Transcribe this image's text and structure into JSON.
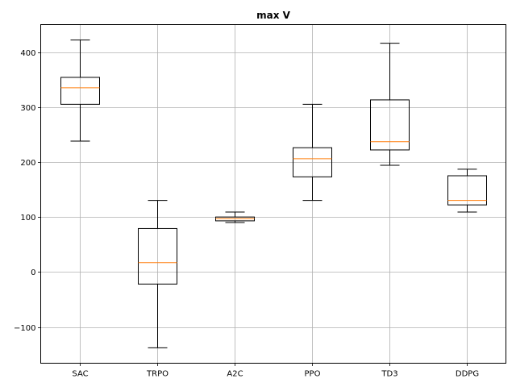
{
  "chart_data": {
    "type": "box",
    "title": "max V",
    "xlabel": "",
    "ylabel": "",
    "categories": [
      "SAC",
      "TRPO",
      "A2C",
      "PPO",
      "TD3",
      "DDPG"
    ],
    "boxes": [
      {
        "label": "SAC",
        "whisker_low": 238,
        "q1": 305,
        "median": 335,
        "q3": 354,
        "whisker_high": 422
      },
      {
        "label": "TRPO",
        "whisker_low": -138,
        "q1": -22,
        "median": 17,
        "q3": 79,
        "whisker_high": 130
      },
      {
        "label": "A2C",
        "whisker_low": 90,
        "q1": 93,
        "median": 97,
        "q3": 100,
        "whisker_high": 109
      },
      {
        "label": "PPO",
        "whisker_low": 130,
        "q1": 173,
        "median": 206,
        "q3": 226,
        "whisker_high": 305
      },
      {
        "label": "TD3",
        "whisker_low": 194,
        "q1": 222,
        "median": 237,
        "q3": 313,
        "whisker_high": 416
      },
      {
        "label": "DDPG",
        "whisker_low": 109,
        "q1": 122,
        "median": 130,
        "q3": 175,
        "whisker_high": 187
      }
    ],
    "ylim": [
      -166,
      450
    ],
    "yticks": [
      -100,
      0,
      100,
      200,
      300,
      400
    ],
    "ytick_labels": [
      "−100",
      "0",
      "100",
      "200",
      "300",
      "400"
    ],
    "grid": true,
    "legend": "none",
    "colors": {
      "box": "#000000",
      "median": "#ff7f0e",
      "grid": "#b0b0b0"
    }
  }
}
